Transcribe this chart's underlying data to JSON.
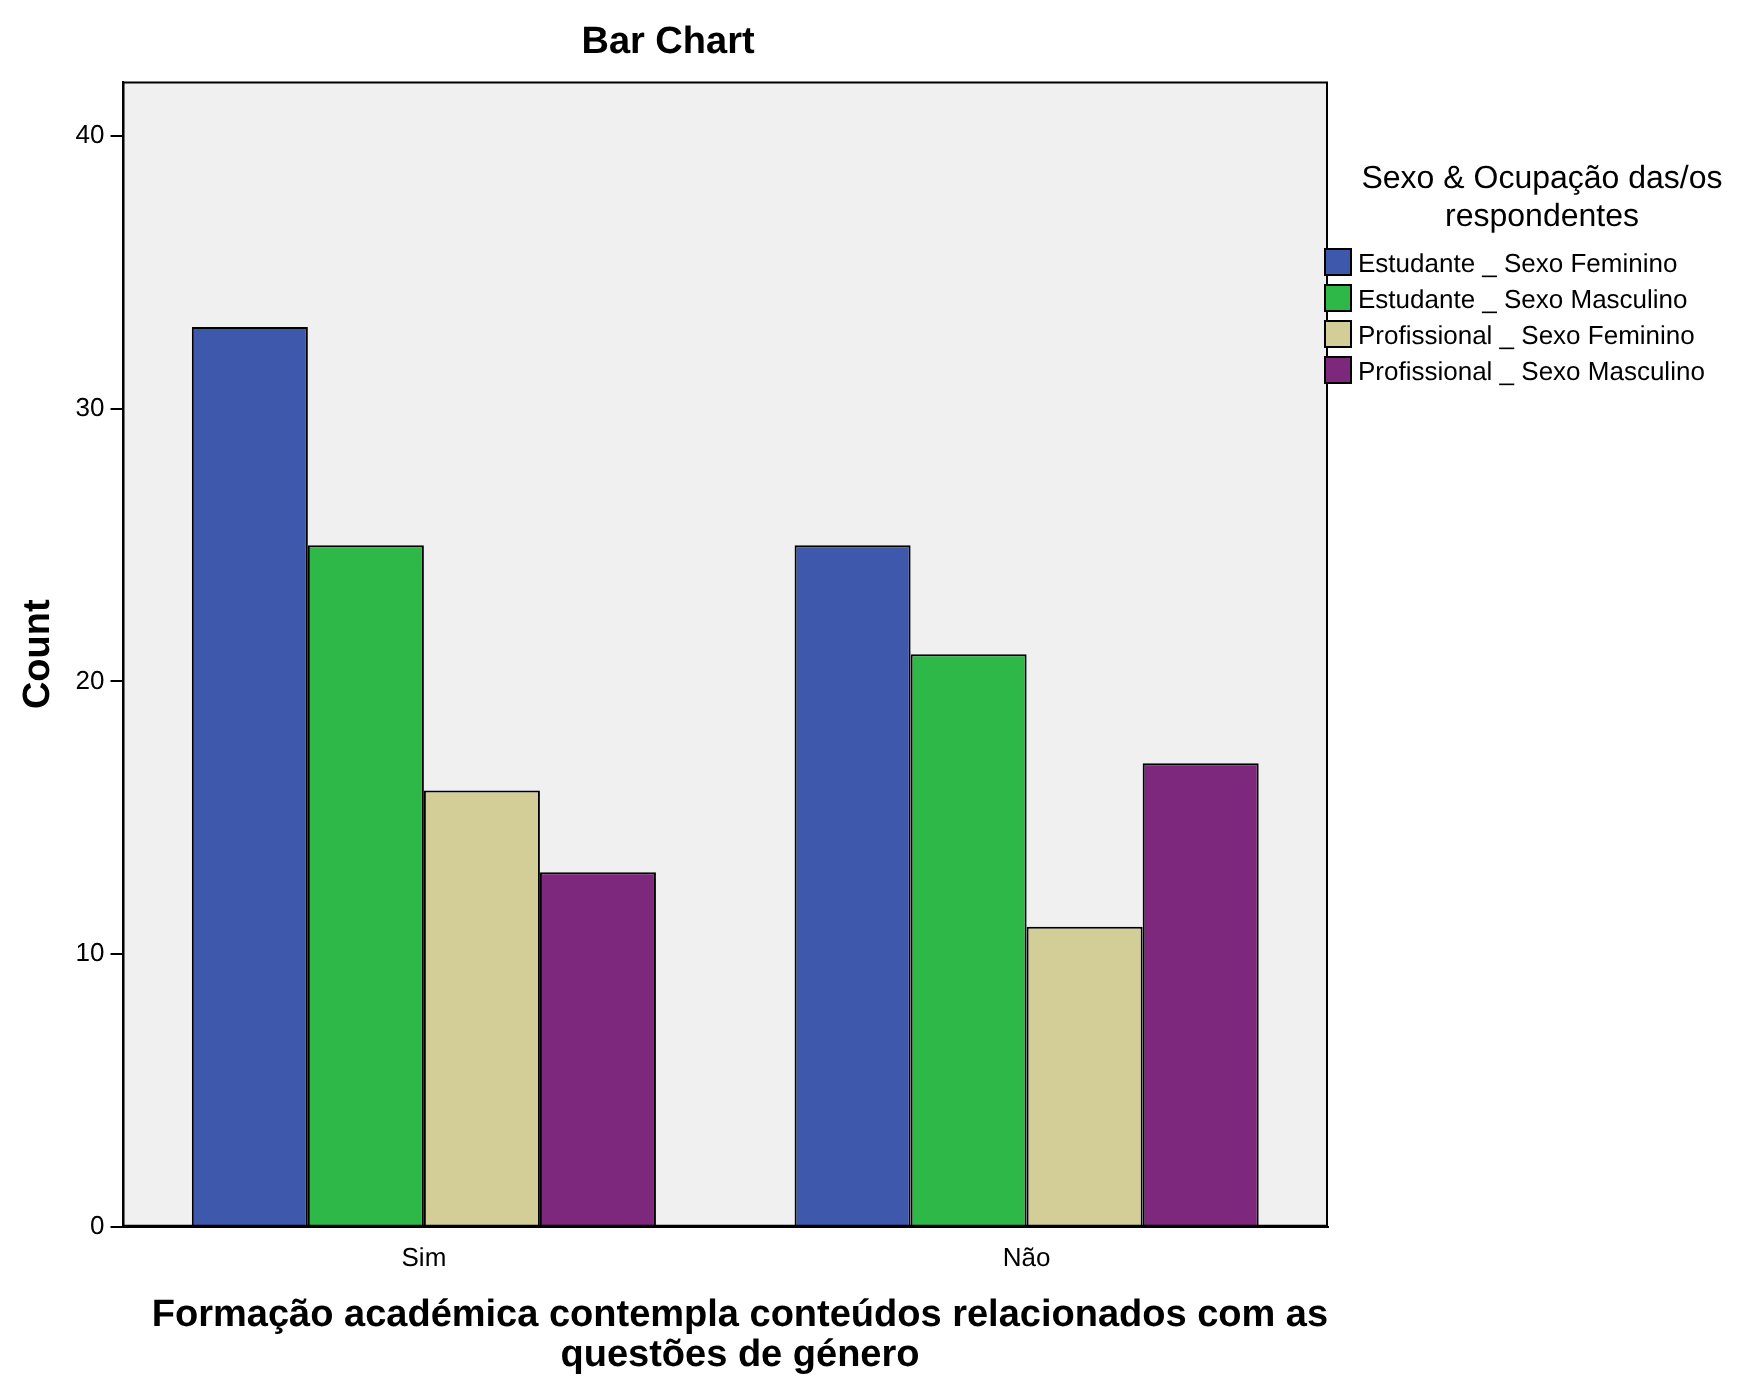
{
  "chart_data": {
    "type": "bar",
    "title": "Bar Chart",
    "xlabel": "Formação académica contempla conteúdos relacionados com as questões de género",
    "ylabel": "Count",
    "legend_title": "Sexo & Ocupação das/os respondentes",
    "categories": [
      "Sim",
      "Não"
    ],
    "series": [
      {
        "name": "Estudante _ Sexo Feminino",
        "color": "#3e58ac",
        "values": [
          33,
          25
        ]
      },
      {
        "name": "Estudante _ Sexo Masculino",
        "color": "#2eb848",
        "values": [
          25,
          21
        ]
      },
      {
        "name": "Profissional _ Sexo Feminino",
        "color": "#d3ce97",
        "values": [
          16,
          11
        ]
      },
      {
        "name": "Profissional _ Sexo Masculino",
        "color": "#7d287d",
        "values": [
          13,
          17
        ]
      }
    ],
    "ylim": [
      0,
      42
    ],
    "yticks": [
      0,
      10,
      20,
      30,
      40
    ],
    "grid": false,
    "legend": "right"
  }
}
